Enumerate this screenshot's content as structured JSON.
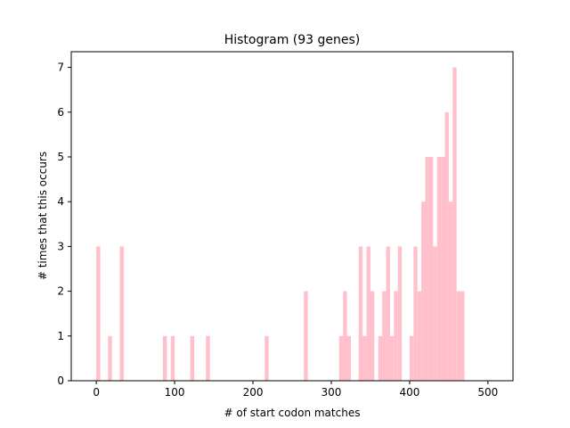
{
  "chart_data": {
    "type": "bar",
    "title": "Histogram (93 genes)",
    "xlabel": "# of start codon matches",
    "ylabel": "# times that this occurs",
    "xlim": [
      -32,
      532
    ],
    "ylim": [
      0,
      7.35
    ],
    "xticks": [
      0,
      100,
      200,
      300,
      400,
      500
    ],
    "yticks": [
      0,
      1,
      2,
      3,
      4,
      5,
      6,
      7
    ],
    "grid": false,
    "legend": "none",
    "bar_color": "#ffc0cb",
    "bin_width": 5,
    "bins": [
      {
        "x": 0,
        "count": 3
      },
      {
        "x": 15,
        "count": 1
      },
      {
        "x": 30,
        "count": 3
      },
      {
        "x": 85,
        "count": 1
      },
      {
        "x": 95,
        "count": 1
      },
      {
        "x": 120,
        "count": 1
      },
      {
        "x": 140,
        "count": 1
      },
      {
        "x": 215,
        "count": 1
      },
      {
        "x": 265,
        "count": 2
      },
      {
        "x": 310,
        "count": 1
      },
      {
        "x": 315,
        "count": 2
      },
      {
        "x": 320,
        "count": 1
      },
      {
        "x": 335,
        "count": 3
      },
      {
        "x": 340,
        "count": 1
      },
      {
        "x": 345,
        "count": 3
      },
      {
        "x": 350,
        "count": 2
      },
      {
        "x": 360,
        "count": 1
      },
      {
        "x": 365,
        "count": 2
      },
      {
        "x": 370,
        "count": 3
      },
      {
        "x": 375,
        "count": 1
      },
      {
        "x": 380,
        "count": 2
      },
      {
        "x": 385,
        "count": 3
      },
      {
        "x": 400,
        "count": 1
      },
      {
        "x": 405,
        "count": 3
      },
      {
        "x": 410,
        "count": 2
      },
      {
        "x": 415,
        "count": 4
      },
      {
        "x": 420,
        "count": 5
      },
      {
        "x": 425,
        "count": 5
      },
      {
        "x": 430,
        "count": 3
      },
      {
        "x": 435,
        "count": 5
      },
      {
        "x": 440,
        "count": 5
      },
      {
        "x": 445,
        "count": 6
      },
      {
        "x": 450,
        "count": 4
      },
      {
        "x": 455,
        "count": 7
      },
      {
        "x": 460,
        "count": 2
      },
      {
        "x": 465,
        "count": 2
      }
    ]
  }
}
